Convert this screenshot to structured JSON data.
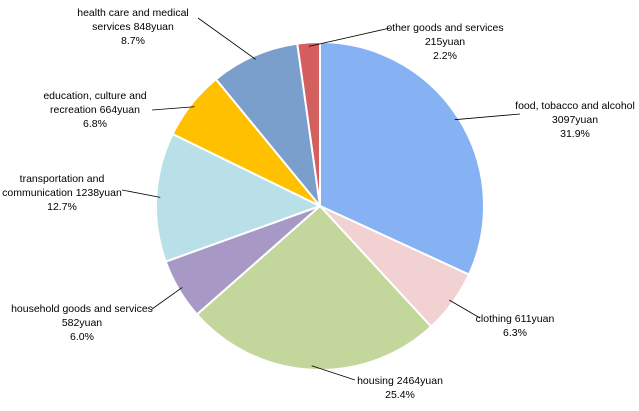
{
  "chart_data": {
    "type": "pie",
    "categories": [
      "food, tobacco and alcohol",
      "clothing",
      "housing",
      "household goods and services",
      "transportation and communication",
      "education, culture and recreation",
      "health care and medical services",
      "other goods and services"
    ],
    "values": [
      3097,
      611,
      2464,
      582,
      1238,
      664,
      848,
      215
    ],
    "value_labels": [
      "3097yuan",
      "611yuan",
      "2464yuan",
      "582yuan",
      "1238yuan",
      "664yuan",
      "848yuan",
      "215yuan"
    ],
    "percentages": [
      31.9,
      6.3,
      25.4,
      6.0,
      12.7,
      6.8,
      8.7,
      2.2
    ],
    "percentage_labels": [
      "31.9%",
      "6.3%",
      "25.4%",
      "6.0%",
      "12.7%",
      "6.8%",
      "8.7%",
      "2.2%"
    ],
    "colors": [
      "#86b2f4",
      "#f2d1d3",
      "#c3d69b",
      "#a898c6",
      "#b9e0e8",
      "#ffc000",
      "#7b9fcd",
      "#d35f5f"
    ]
  }
}
